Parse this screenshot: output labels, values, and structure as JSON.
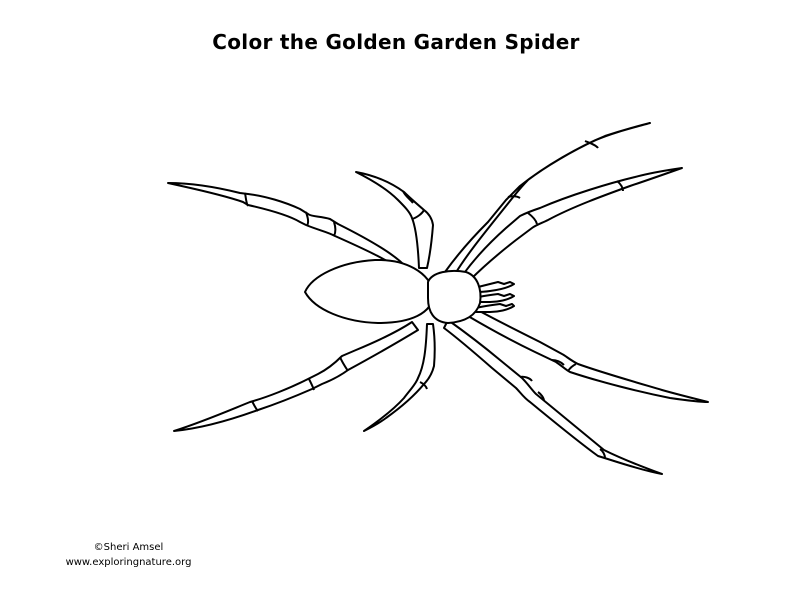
{
  "page": {
    "title": "Color the Golden Garden Spider"
  },
  "credits": {
    "copyright": "©Sheri Amsel",
    "website": "www.exploringnature.org"
  },
  "colors": {
    "line": "#000000",
    "background": "#ffffff"
  }
}
